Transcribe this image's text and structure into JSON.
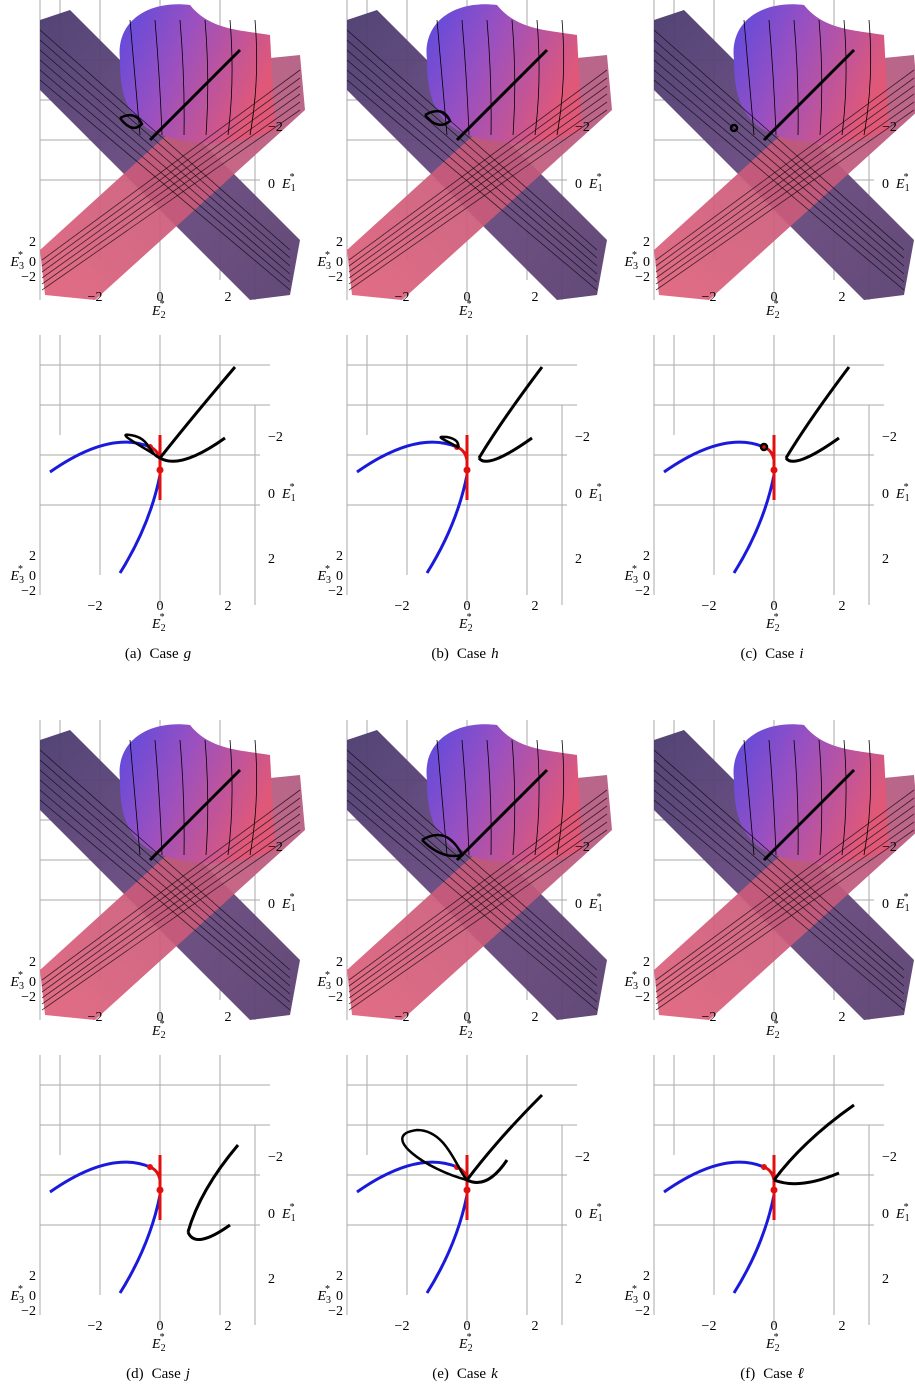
{
  "axes": {
    "horizontal": {
      "letter": "E",
      "sub": "2",
      "sup": "*",
      "ticks": [
        "−2",
        "0",
        "2"
      ]
    },
    "vertical": {
      "letter": "E",
      "sub": "1",
      "sup": "*",
      "ticks": [
        "−2",
        "0",
        "2"
      ]
    },
    "depth": {
      "letter": "E",
      "sub": "3",
      "sup": "*",
      "ticks": [
        "2",
        "0",
        "−2"
      ]
    }
  },
  "panels": [
    {
      "caption": {
        "tag": "(a)",
        "text": "Case",
        "var": "g"
      }
    },
    {
      "caption": {
        "tag": "(b)",
        "text": "Case",
        "var": "h"
      }
    },
    {
      "caption": {
        "tag": "(c)",
        "text": "Case",
        "var": "i"
      }
    },
    {
      "caption": {
        "tag": "(d)",
        "text": "Case",
        "var": "j"
      }
    },
    {
      "caption": {
        "tag": "(e)",
        "text": "Case",
        "var": "k"
      }
    },
    {
      "caption": {
        "tag": "(f)",
        "text": "Case",
        "var": "ℓ"
      }
    }
  ]
}
